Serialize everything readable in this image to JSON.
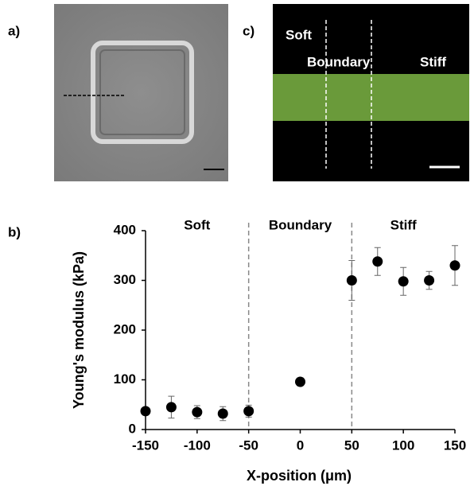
{
  "panels": {
    "a": {
      "label": "a)"
    },
    "b": {
      "label": "b)"
    },
    "c": {
      "label": "c)",
      "texts": [
        "Soft",
        "Boundary",
        "Stiff"
      ]
    }
  },
  "chart_data": {
    "type": "scatter",
    "x": [
      -150,
      -125,
      -100,
      -75,
      -50,
      0,
      50,
      75,
      100,
      125,
      150
    ],
    "values": [
      37,
      45,
      35,
      32,
      37,
      96,
      300,
      338,
      298,
      300,
      330
    ],
    "errors": [
      6,
      22,
      13,
      14,
      12,
      8,
      40,
      28,
      28,
      18,
      40
    ],
    "color": "#000000",
    "xlim": [
      -150,
      150
    ],
    "xticks": [
      -150,
      -100,
      -50,
      0,
      50,
      100,
      150
    ],
    "ylim": [
      0,
      400
    ],
    "yticks": [
      0,
      100,
      200,
      300,
      400
    ],
    "xlabel": "X-position (μm)",
    "ylabel": "Young's modulus (kPa)",
    "dividers": [
      -50,
      50
    ],
    "annotations": [
      "Soft",
      "Boundary",
      "Stiff"
    ]
  }
}
